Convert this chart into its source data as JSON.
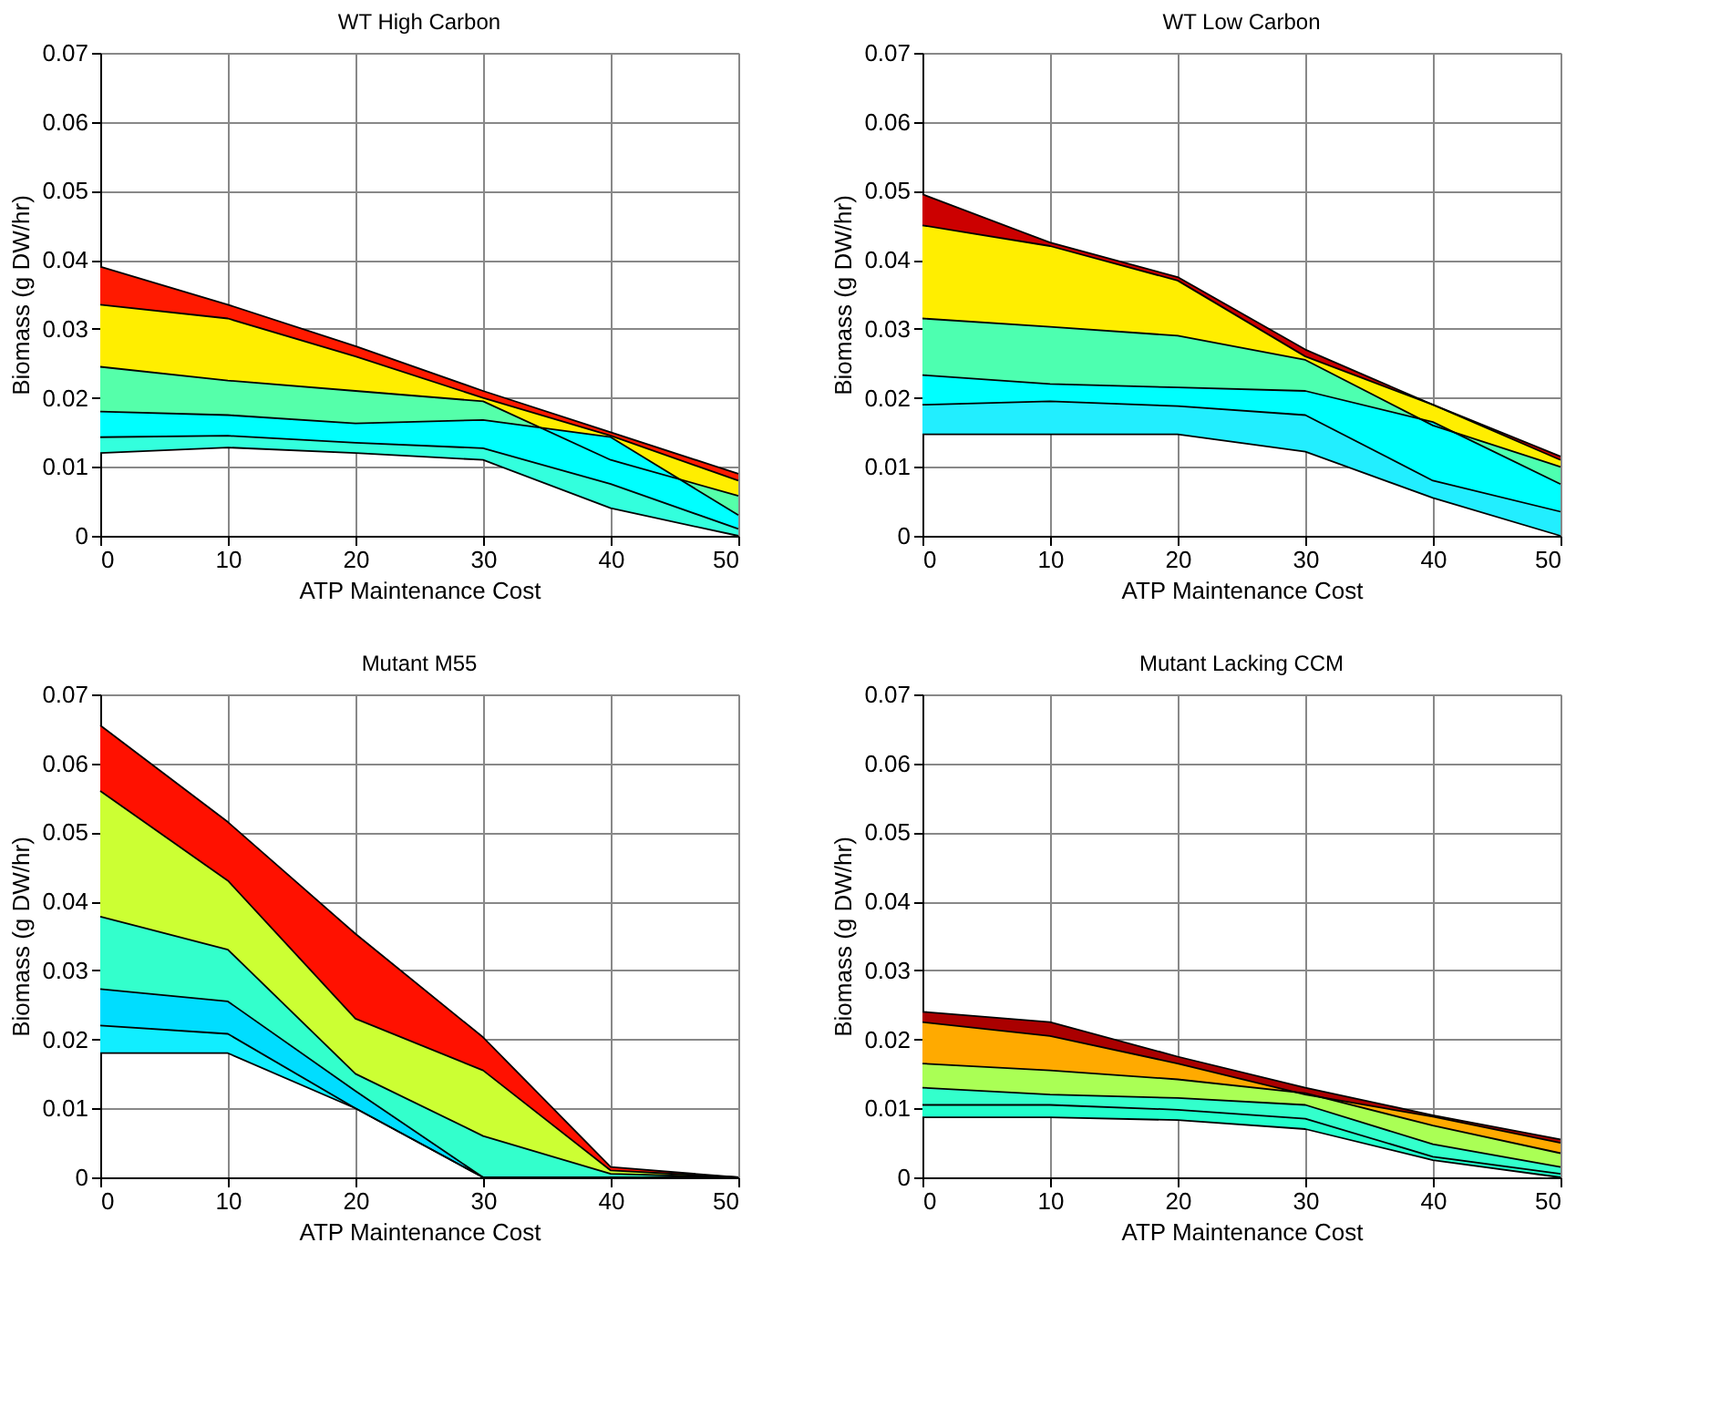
{
  "chart_data": [
    {
      "type": "area",
      "title": "WT High Carbon",
      "xlabel": "ATP Maintenance Cost",
      "ylabel": "Biomass (g DW/hr)",
      "x": [
        0,
        10,
        20,
        30,
        40,
        50
      ],
      "xlim": [
        0,
        50
      ],
      "xticks": [
        0,
        10,
        20,
        30,
        40,
        50
      ],
      "ylim": [
        0,
        0.07
      ],
      "yticks": [
        0,
        0.01,
        0.02,
        0.03,
        0.04,
        0.05,
        0.06,
        0.07
      ],
      "grid": true,
      "series": [
        {
          "color": "#ff1a00",
          "values": [
            0.039,
            0.0335,
            0.0275,
            0.021,
            0.015,
            0.009
          ]
        },
        {
          "color": "#ffee00",
          "values": [
            0.0335,
            0.0315,
            0.026,
            0.02,
            0.0145,
            0.008
          ]
        },
        {
          "color": "#55ffaa",
          "values": [
            0.0245,
            0.0225,
            0.021,
            0.0195,
            0.011,
            0.0058
          ]
        },
        {
          "color": "#00ffff",
          "values": [
            0.018,
            0.0175,
            0.0163,
            0.0168,
            0.0143,
            0.003
          ]
        },
        {
          "color": "#33ffdd",
          "values": [
            0.0143,
            0.0145,
            0.0135,
            0.0127,
            0.0075,
            0.001
          ]
        },
        {
          "type": "line",
          "color": "#000000",
          "values": [
            0.012,
            0.0128,
            0.012,
            0.011,
            0.004,
            0
          ]
        }
      ]
    },
    {
      "type": "area",
      "title": "WT Low Carbon",
      "xlabel": "ATP Maintenance Cost",
      "ylabel": "Biomass (g DW/hr)",
      "x": [
        0,
        10,
        20,
        30,
        40,
        50
      ],
      "xlim": [
        0,
        50
      ],
      "xticks": [
        0,
        10,
        20,
        30,
        40,
        50
      ],
      "ylim": [
        0,
        0.07
      ],
      "yticks": [
        0,
        0.01,
        0.02,
        0.03,
        0.04,
        0.05,
        0.06,
        0.07
      ],
      "grid": true,
      "series": [
        {
          "color": "#cc0000",
          "values": [
            0.0495,
            0.0425,
            0.0375,
            0.027,
            0.019,
            0.0115
          ]
        },
        {
          "color": "#ffee00",
          "values": [
            0.045,
            0.042,
            0.037,
            0.026,
            0.019,
            0.011
          ]
        },
        {
          "color": "#4dffb0",
          "values": [
            0.0315,
            0.0303,
            0.029,
            0.0255,
            0.016,
            0.01
          ]
        },
        {
          "color": "#00ffff",
          "values": [
            0.0233,
            0.022,
            0.0215,
            0.021,
            0.0165,
            0.0075
          ]
        },
        {
          "color": "#22eeff",
          "values": [
            0.019,
            0.0195,
            0.0188,
            0.0175,
            0.008,
            0.0035
          ]
        },
        {
          "type": "line",
          "color": "#000000",
          "values": [
            0.0147,
            0.0147,
            0.0147,
            0.0122,
            0.0055,
            0
          ]
        }
      ]
    },
    {
      "type": "area",
      "title": "Mutant M55",
      "xlabel": "ATP Maintenance Cost",
      "ylabel": "Biomass (g DW/hr)",
      "x": [
        0,
        10,
        20,
        30,
        40,
        50
      ],
      "xlim": [
        0,
        50
      ],
      "xticks": [
        0,
        10,
        20,
        30,
        40,
        50
      ],
      "ylim": [
        0,
        0.07
      ],
      "yticks": [
        0,
        0.01,
        0.02,
        0.03,
        0.04,
        0.05,
        0.06,
        0.07
      ],
      "grid": true,
      "series": [
        {
          "color": "#ff1100",
          "values": [
            0.0655,
            0.0515,
            0.0353,
            0.0203,
            0.0015,
            0
          ]
        },
        {
          "color": "#ccff33",
          "values": [
            0.056,
            0.043,
            0.023,
            0.0155,
            0.001,
            0
          ]
        },
        {
          "color": "#33ffcc",
          "values": [
            0.0378,
            0.033,
            0.015,
            0.006,
            0.0005,
            0
          ]
        },
        {
          "color": "#00ddff",
          "values": [
            0.0273,
            0.0255,
            0.0125,
            0,
            0,
            0
          ]
        },
        {
          "color": "#11eeff",
          "values": [
            0.022,
            0.0208,
            0.01,
            0,
            0,
            0
          ]
        },
        {
          "type": "line",
          "color": "#000000",
          "values": [
            0.018,
            0.018,
            0.01,
            0,
            0,
            0
          ]
        }
      ]
    },
    {
      "type": "area",
      "title": "Mutant Lacking CCM",
      "xlabel": "ATP Maintenance Cost",
      "ylabel": "Biomass (g DW/hr)",
      "x": [
        0,
        10,
        20,
        30,
        40,
        50
      ],
      "xlim": [
        0,
        50
      ],
      "xticks": [
        0,
        10,
        20,
        30,
        40,
        50
      ],
      "ylim": [
        0,
        0.07
      ],
      "yticks": [
        0,
        0.01,
        0.02,
        0.03,
        0.04,
        0.05,
        0.06,
        0.07
      ],
      "grid": true,
      "series": [
        {
          "color": "#aa0000",
          "values": [
            0.024,
            0.0225,
            0.0175,
            0.013,
            0.009,
            0.0055
          ]
        },
        {
          "color": "#ffaa00",
          "values": [
            0.0225,
            0.0205,
            0.0165,
            0.012,
            0.0088,
            0.005
          ]
        },
        {
          "color": "#aaff55",
          "values": [
            0.0165,
            0.0155,
            0.0142,
            0.0122,
            0.0075,
            0.0035
          ]
        },
        {
          "color": "#33ffcc",
          "values": [
            0.013,
            0.012,
            0.0115,
            0.0105,
            0.0048,
            0.0015
          ]
        },
        {
          "color": "#22ffcc",
          "values": [
            0.0105,
            0.0105,
            0.0098,
            0.0085,
            0.003,
            0.0005
          ]
        },
        {
          "type": "line",
          "color": "#000000",
          "values": [
            0.0087,
            0.0087,
            0.0083,
            0.007,
            0.0025,
            0
          ]
        }
      ]
    }
  ]
}
